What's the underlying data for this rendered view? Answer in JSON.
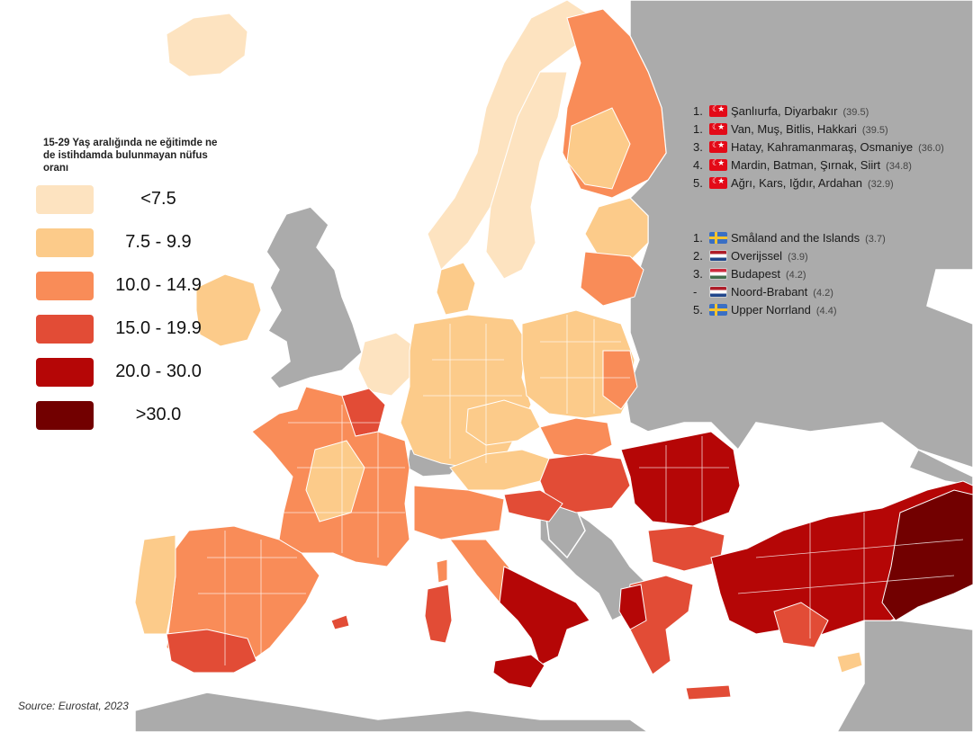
{
  "legend": {
    "title": "15-29 Yaş aralığında ne eğitimde ne de istihdamda bulunmayan nüfus oranı",
    "items": [
      {
        "label": "<7.5",
        "color": "#fde3c0"
      },
      {
        "label": "7.5 - 9.9",
        "color": "#fccb8a"
      },
      {
        "label": "10.0 - 14.9",
        "color": "#f98c58"
      },
      {
        "label": "15.0 - 19.9",
        "color": "#e24c36"
      },
      {
        "label": "20.0 - 30.0",
        "color": "#b50606"
      },
      {
        "label": ">30.0",
        "color": "#720000"
      }
    ]
  },
  "no_data_color": "#ababab",
  "highest": [
    {
      "rank": "1.",
      "flag": "turkey-flag-icon",
      "name": "Şanlıurfa, Diyarbakır",
      "value": "(39.5)"
    },
    {
      "rank": "1.",
      "flag": "turkey-flag-icon",
      "name": "Van, Muş, Bitlis, Hakkari",
      "value": "(39.5)"
    },
    {
      "rank": "3.",
      "flag": "turkey-flag-icon",
      "name": "Hatay, Kahramanmaraş, Osmaniye",
      "value": "(36.0)"
    },
    {
      "rank": "4.",
      "flag": "turkey-flag-icon",
      "name": "Mardin, Batman, Şırnak, Siirt",
      "value": "(34.8)"
    },
    {
      "rank": "5.",
      "flag": "turkey-flag-icon",
      "name": "Ağrı, Kars, Iğdır, Ardahan",
      "value": "(32.9)"
    }
  ],
  "lowest": [
    {
      "rank": "1.",
      "flag": "sweden-flag-icon",
      "name": "Småland and the Islands",
      "value": "(3.7)"
    },
    {
      "rank": "2.",
      "flag": "netherlands-flag-icon",
      "name": "Overijssel",
      "value": "(3.9)"
    },
    {
      "rank": "3.",
      "flag": "hungary-flag-icon",
      "name": "Budapest",
      "value": "(4.2)"
    },
    {
      "rank": "-",
      "flag": "netherlands-flag-icon",
      "name": "Noord-Brabant",
      "value": "(4.2)"
    },
    {
      "rank": "5.",
      "flag": "sweden-flag-icon",
      "name": "Upper Norrland",
      "value": "(4.4)"
    }
  ],
  "source": "Source: Eurostat, 2023"
}
